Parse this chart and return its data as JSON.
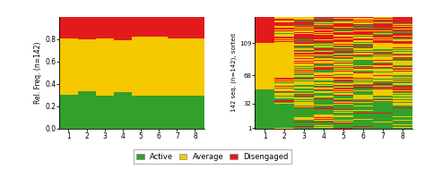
{
  "colors": {
    "active": "#33a02c",
    "average": "#f5c800",
    "disengaged": "#e31a1c"
  },
  "left_title": "Rel. Freq. (n=142)",
  "right_title": "142 seq. (n=142), sorted",
  "right_yticks": [
    1,
    32,
    68,
    109
  ],
  "legend_labels": [
    "Active",
    "Average",
    "Disengaged"
  ],
  "left_data": {
    "active": [
      0.305,
      0.335,
      0.295,
      0.325,
      0.295,
      0.295,
      0.295,
      0.295
    ],
    "average": [
      0.505,
      0.465,
      0.515,
      0.465,
      0.525,
      0.525,
      0.515,
      0.515
    ],
    "disengaged": [
      0.19,
      0.2,
      0.19,
      0.21,
      0.18,
      0.18,
      0.19,
      0.19
    ]
  },
  "n_seq": 142,
  "n_steps": 8,
  "figsize": [
    4.74,
    1.89
  ],
  "dpi": 100
}
